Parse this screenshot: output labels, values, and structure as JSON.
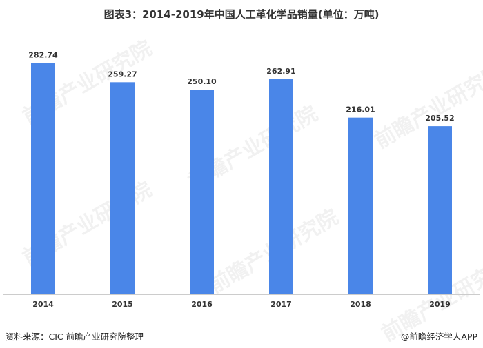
{
  "chart_data": {
    "type": "bar",
    "title": "图表3：2014-2019年中国人工革化学品销量(单位：万吨)",
    "categories": [
      "2014",
      "2015",
      "2016",
      "2017",
      "2018",
      "2019"
    ],
    "series": [
      {
        "values": [
          282.74,
          259.27,
          250.1,
          262.91,
          216.01,
          205.52
        ]
      }
    ],
    "value_labels": [
      "282.74",
      "259.27",
      "250.10",
      "262.91",
      "216.01",
      "205.52"
    ],
    "ylim": [
      0,
      300
    ],
    "grid": false,
    "legend": "none",
    "bar_color": "#4a86e8",
    "axis_color": "#cccccc"
  },
  "footer": {
    "source": "资料来源：CIC 前瞻产业研究院整理",
    "credit": "@前瞻经济学人APP"
  },
  "watermark": "前瞻产业研究院"
}
